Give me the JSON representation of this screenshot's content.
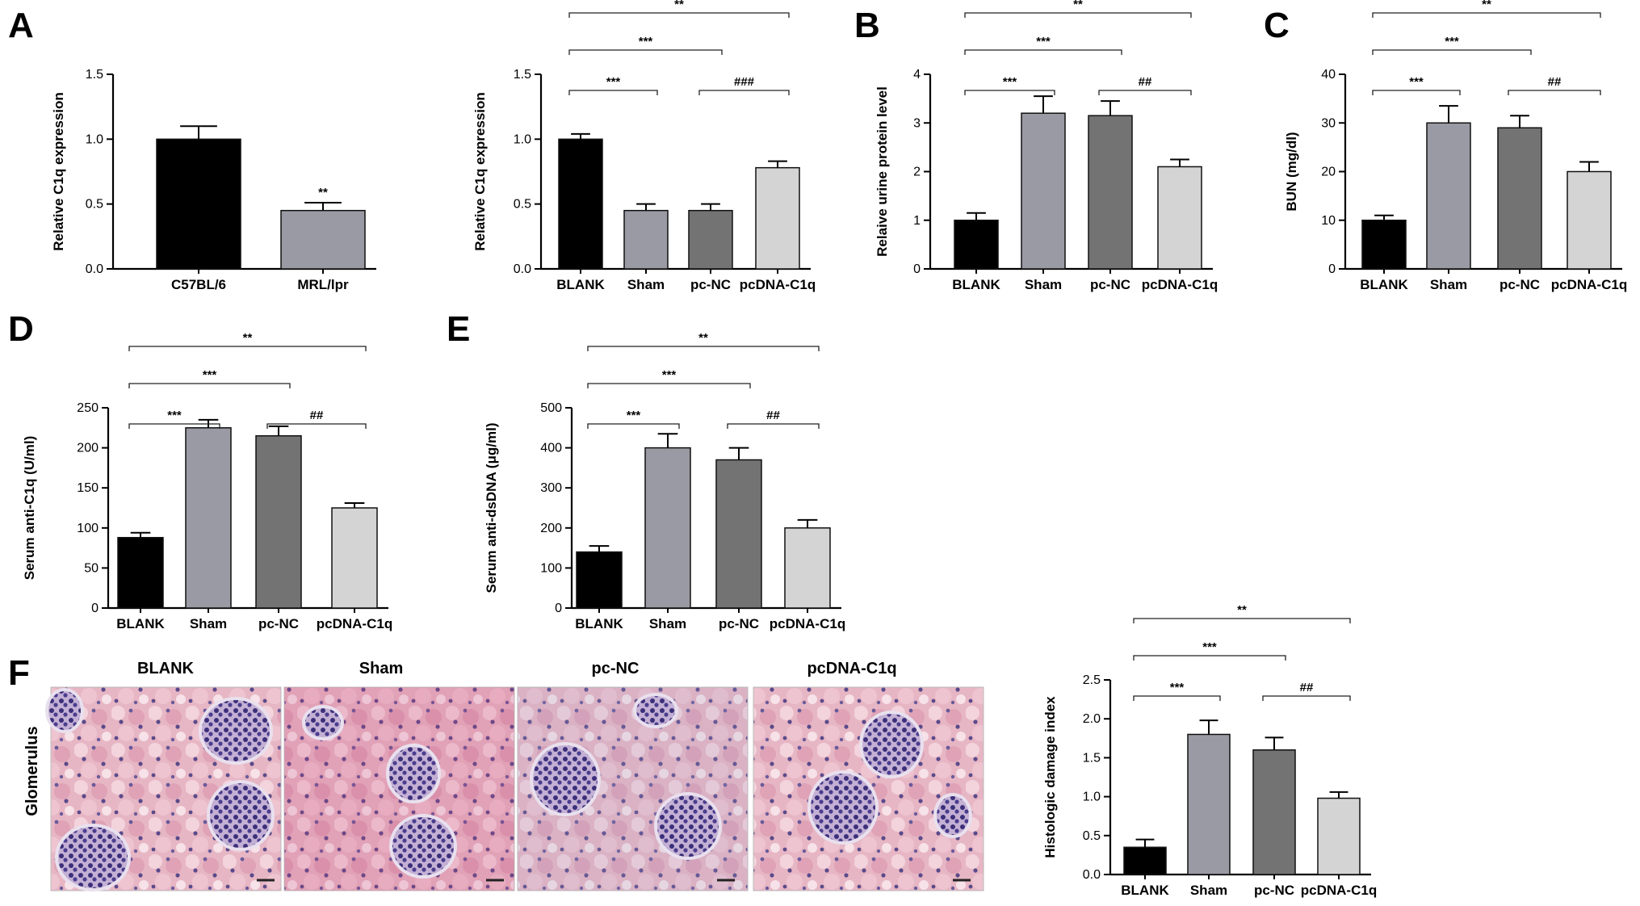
{
  "panels": {
    "A": "A",
    "B": "B",
    "C": "C",
    "D": "D",
    "E": "E",
    "F": "F"
  },
  "histology": {
    "titles": [
      "BLANK",
      "Sham",
      "pc-NC",
      "pcDNA-C1q"
    ],
    "row_label": "Glomerulus"
  },
  "colors": {
    "BLANK": "#000000",
    "MRL": "#9a9aa4",
    "Sham": "#9a9aa4",
    "pcNC": "#737373",
    "pcDNA": "#d4d4d4"
  },
  "chart_data": [
    {
      "id": "A1",
      "type": "bar",
      "categories": [
        "C57BL/6",
        "MRL/lpr"
      ],
      "values": [
        1.0,
        0.45
      ],
      "errors": [
        0.1,
        0.06
      ],
      "ylabel": "Relative C1q expression",
      "ylim": [
        0,
        1.5
      ],
      "yticks": [
        "0.0",
        "0.5",
        "1.0",
        "1.5"
      ],
      "bar_labels": [
        "",
        "**"
      ],
      "comparisons": []
    },
    {
      "id": "A2",
      "type": "bar",
      "categories": [
        "BLANK",
        "Sham",
        "pc-NC",
        "pcDNA-C1q"
      ],
      "values": [
        1.0,
        0.45,
        0.45,
        0.78
      ],
      "errors": [
        0.04,
        0.05,
        0.05,
        0.05
      ],
      "ylabel": "Relative C1q expression",
      "ylim": [
        0,
        1.5
      ],
      "yticks": [
        "0.0",
        "0.5",
        "1.0",
        "1.5"
      ],
      "bar_labels": [
        "",
        "",
        "",
        ""
      ],
      "comparisons": [
        {
          "from": 0,
          "to": 1,
          "label": "***"
        },
        {
          "from": 2,
          "to": 3,
          "label": "###"
        },
        {
          "from": 0,
          "to": 2,
          "label": "***"
        },
        {
          "from": 0,
          "to": 3,
          "label": "**"
        }
      ]
    },
    {
      "id": "B",
      "type": "bar",
      "categories": [
        "BLANK",
        "Sham",
        "pc-NC",
        "pcDNA-C1q"
      ],
      "values": [
        1.0,
        3.2,
        3.15,
        2.1
      ],
      "errors": [
        0.15,
        0.35,
        0.3,
        0.15
      ],
      "ylabel": "Relaive urine protein level",
      "ylim": [
        0,
        4
      ],
      "yticks": [
        "0",
        "1",
        "2",
        "3",
        "4"
      ],
      "bar_labels": [
        "",
        "",
        "",
        ""
      ],
      "comparisons": [
        {
          "from": 0,
          "to": 1,
          "label": "***"
        },
        {
          "from": 2,
          "to": 3,
          "label": "##"
        },
        {
          "from": 0,
          "to": 2,
          "label": "***"
        },
        {
          "from": 0,
          "to": 3,
          "label": "**"
        }
      ]
    },
    {
      "id": "C",
      "type": "bar",
      "categories": [
        "BLANK",
        "Sham",
        "pc-NC",
        "pcDNA-C1q"
      ],
      "values": [
        10,
        30,
        29,
        20
      ],
      "errors": [
        1,
        3.5,
        2.5,
        2
      ],
      "ylabel": "BUN (mg/dl)",
      "ylim": [
        0,
        40
      ],
      "yticks": [
        "0",
        "10",
        "20",
        "30",
        "40"
      ],
      "bar_labels": [
        "",
        "",
        "",
        ""
      ],
      "comparisons": [
        {
          "from": 0,
          "to": 1,
          "label": "***"
        },
        {
          "from": 2,
          "to": 3,
          "label": "##"
        },
        {
          "from": 0,
          "to": 2,
          "label": "***"
        },
        {
          "from": 0,
          "to": 3,
          "label": "**"
        }
      ]
    },
    {
      "id": "D",
      "type": "bar",
      "categories": [
        "BLANK",
        "Sham",
        "pc-NC",
        "pcDNA-C1q"
      ],
      "values": [
        88,
        225,
        215,
        125
      ],
      "errors": [
        6,
        10,
        12,
        6
      ],
      "ylabel": "Serum anti-C1q (U/ml)",
      "ylim": [
        0,
        250
      ],
      "yticks": [
        "0",
        "50",
        "100",
        "150",
        "200",
        "250"
      ],
      "bar_labels": [
        "",
        "",
        "",
        ""
      ],
      "comparisons": [
        {
          "from": 0,
          "to": 1,
          "label": "***"
        },
        {
          "from": 2,
          "to": 3,
          "label": "##"
        },
        {
          "from": 0,
          "to": 2,
          "label": "***"
        },
        {
          "from": 0,
          "to": 3,
          "label": "**"
        }
      ]
    },
    {
      "id": "E",
      "type": "bar",
      "categories": [
        "BLANK",
        "Sham",
        "pc-NC",
        "pcDNA-C1q"
      ],
      "values": [
        140,
        400,
        370,
        200
      ],
      "errors": [
        15,
        35,
        30,
        20
      ],
      "ylabel": "Serum anti-dsDNA (μg/ml)",
      "ylim": [
        0,
        500
      ],
      "yticks": [
        "0",
        "100",
        "200",
        "300",
        "400",
        "500"
      ],
      "bar_labels": [
        "",
        "",
        "",
        ""
      ],
      "comparisons": [
        {
          "from": 0,
          "to": 1,
          "label": "***"
        },
        {
          "from": 2,
          "to": 3,
          "label": "##"
        },
        {
          "from": 0,
          "to": 2,
          "label": "***"
        },
        {
          "from": 0,
          "to": 3,
          "label": "**"
        }
      ]
    },
    {
      "id": "F",
      "type": "bar",
      "categories": [
        "BLANK",
        "Sham",
        "pc-NC",
        "pcDNA-C1q"
      ],
      "values": [
        0.35,
        1.8,
        1.6,
        0.98
      ],
      "errors": [
        0.1,
        0.18,
        0.16,
        0.08
      ],
      "ylabel": "Histologic damage index",
      "ylim": [
        0,
        2.5
      ],
      "yticks": [
        "0.0",
        "0.5",
        "1.0",
        "1.5",
        "2.0",
        "2.5"
      ],
      "bar_labels": [
        "",
        "",
        "",
        ""
      ],
      "comparisons": [
        {
          "from": 0,
          "to": 1,
          "label": "***"
        },
        {
          "from": 2,
          "to": 3,
          "label": "##"
        },
        {
          "from": 0,
          "to": 2,
          "label": "***"
        },
        {
          "from": 0,
          "to": 3,
          "label": "**"
        }
      ]
    }
  ]
}
